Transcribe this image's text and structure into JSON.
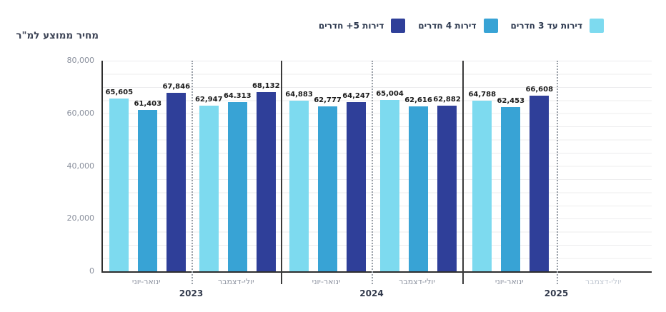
{
  "title": "מחיר ממוצע למ\"ר",
  "colors": {
    "series_3_rooms": "#7DDAEF",
    "series_4_rooms": "#38A3D5",
    "series_5plus_rooms": "#2F3F99",
    "grid": "#ECECEE",
    "axis": "#2E2E2E",
    "year_separator": "#3A3A3A",
    "period_separator": "#9AA0A8",
    "tick_text": "#8B919E",
    "disabled_text": "#C6CCD5"
  },
  "chart_data": {
    "type": "bar",
    "title": "מחיר ממוצע למ\"ר",
    "ylim": [
      0,
      80000
    ],
    "grid_step": 5000,
    "grid": true,
    "legend_position": "top",
    "y_ticks": [
      {
        "value": 80000,
        "label": "80,000"
      },
      {
        "value": 60000,
        "label": "60,000"
      },
      {
        "value": 40000,
        "label": "40,000"
      },
      {
        "value": 20000,
        "label": "20,000"
      },
      {
        "value": 0,
        "label": "0"
      }
    ],
    "series": [
      {
        "name": "דירות עד 3 חדרים",
        "color": "#7DDAEF"
      },
      {
        "name": "דירות 4 חדרים",
        "color": "#38A3D5"
      },
      {
        "name": "דירות 5+ חדרים",
        "color": "#2F3F99"
      }
    ],
    "groups": [
      {
        "year": "2023",
        "periods": [
          {
            "label": "ינואר-יוני",
            "values": [
              65605,
              61403,
              67846
            ],
            "value_labels": [
              "65,605",
              "61,403",
              "67,846"
            ],
            "disabled": false
          },
          {
            "label": "יולי-דצמבר",
            "values": [
              62947,
              64313,
              68132
            ],
            "value_labels": [
              "62,947",
              "64.313",
              "68,132"
            ],
            "disabled": false
          }
        ]
      },
      {
        "year": "2024",
        "periods": [
          {
            "label": "ינואר-יוני",
            "values": [
              64883,
              62777,
              64247
            ],
            "value_labels": [
              "64,883",
              "62,777",
              "64,247"
            ],
            "disabled": false
          },
          {
            "label": "יולי-דצמבר",
            "values": [
              65004,
              62616,
              62882
            ],
            "value_labels": [
              "65,004",
              "62,616",
              "62,882"
            ],
            "disabled": false
          }
        ]
      },
      {
        "year": "2025",
        "periods": [
          {
            "label": "ינואר-יוני",
            "values": [
              64788,
              62453,
              66608
            ],
            "value_labels": [
              "64,788",
              "62,453",
              "66,608"
            ],
            "disabled": false
          },
          {
            "label": "יולי-דצמבר",
            "values": [],
            "value_labels": [],
            "disabled": true
          }
        ]
      }
    ]
  }
}
